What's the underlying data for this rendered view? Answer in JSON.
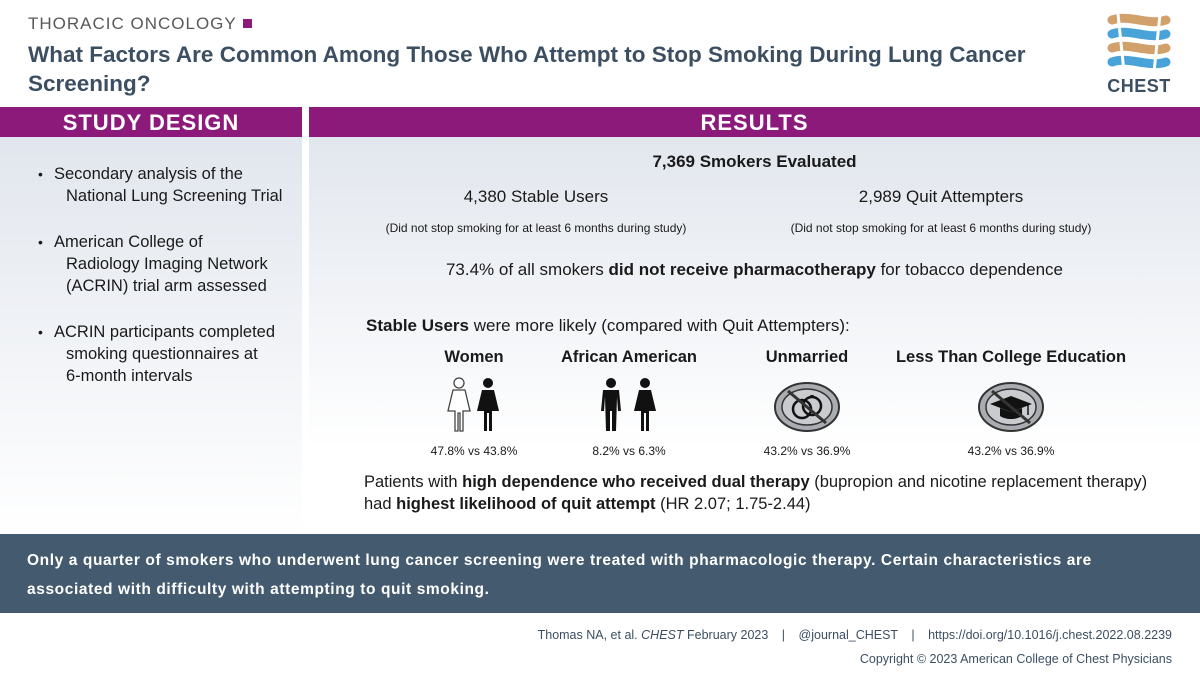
{
  "header": {
    "topic": "THORACIC ONCOLOGY",
    "title": "What Factors Are Common Among Those Who Attempt to Stop Smoking During Lung Cancer Screening?",
    "logo_text": "CHEST"
  },
  "study_design": {
    "heading": "STUDY DESIGN",
    "items": [
      {
        "line1": "Secondary analysis of the",
        "line2": "National Lung Screening Trial",
        "line3": ""
      },
      {
        "line1": "American College of",
        "line2": "Radiology Imaging Network",
        "line3": "(ACRIN) trial arm assessed"
      },
      {
        "line1": "ACRIN participants completed",
        "line2": "smoking questionnaires at",
        "line3": "6-month intervals"
      }
    ]
  },
  "results": {
    "heading": "RESULTS",
    "evaluated": "7,369 Smokers Evaluated",
    "groups": [
      {
        "title": "4,380 Stable Users",
        "note": "(Did not stop smoking for at least 6 months during study)"
      },
      {
        "title": "2,989 Quit Attempters",
        "note": "(Did not stop smoking for at least 6 months during study)"
      }
    ],
    "pharma": {
      "pre": "73.4% of all smokers ",
      "bold": "did not receive pharmacotherapy",
      "post": " for tobacco dependence"
    },
    "likely": {
      "bold": "Stable Users",
      "rest": " were more likely (compared with Quit Attempters):"
    },
    "factors": [
      {
        "name": "Women",
        "value": "47.8% vs 43.8%",
        "icon": "female-figures-icon"
      },
      {
        "name": "African American",
        "value": "8.2% vs 6.3%",
        "icon": "male-female-figures-icon"
      },
      {
        "name": "Unmarried",
        "value": "43.2% vs 36.9%",
        "icon": "no-rings-icon"
      },
      {
        "name": "Less Than College Education",
        "value": "43.2% vs 36.9%",
        "icon": "no-graduation-cap-icon"
      }
    ],
    "dual": {
      "p1": "Patients with ",
      "b1": "high dependence who received dual therapy",
      "p2": " (bupropion and nicotine replacement therapy) had ",
      "b2": "highest likelihood of quit attempt",
      "p3": " (HR 2.07; 1.75-2.44)"
    }
  },
  "conclusion": "Only a quarter of smokers who underwent lung cancer screening were treated with pharmacologic therapy. Certain characteristics are associated with difficulty with attempting to quit smoking.",
  "footer": {
    "authors": "Thomas NA, et al.",
    "journal": "CHEST",
    "date": "February 2023",
    "twitter": "@journal_CHEST",
    "doi": "https://doi.org/10.1016/j.chest.2022.08.2239",
    "copyright": "Copyright © 2023 American College of Chest Physicians"
  },
  "colors": {
    "accent_purple": "#8b1a7a",
    "title_navy": "#3c4f62",
    "bottom_band": "#435a6f",
    "logo_blue": "#4aa3d8",
    "logo_tan": "#d2a06a"
  }
}
